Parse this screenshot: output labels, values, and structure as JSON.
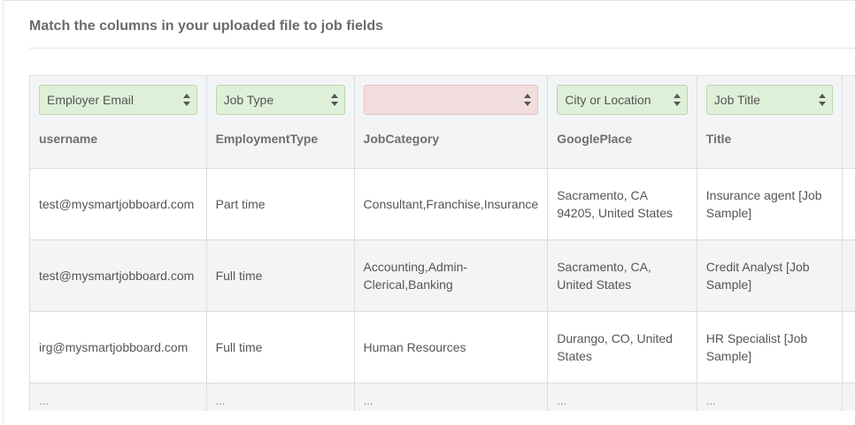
{
  "heading": "Match the columns in your uploaded file to job fields",
  "columns": [
    {
      "select_value": "Employer Email",
      "name": "username"
    },
    {
      "select_value": "Job Type",
      "name": "EmploymentType"
    },
    {
      "select_value": "",
      "name": "JobCategory"
    },
    {
      "select_value": "City or Location",
      "name": "GooglePlace"
    },
    {
      "select_value": "Job Title",
      "name": "Title"
    }
  ],
  "rows": [
    [
      "test@mysmartjobboard.com",
      "Part time",
      "Consultant,Franchise,Insurance",
      "Sacramento, CA 94205, United States",
      "Insurance agent [Job Sample]"
    ],
    [
      "test@mysmartjobboard.com",
      "Full time",
      "Accounting,Admin-Clerical,Banking",
      "Sacramento, CA, United States",
      "Credit Analyst [Job Sample]"
    ],
    [
      "irg@mysmartjobboard.com",
      "Full time",
      "Human Resources",
      "Durango, CO, United States",
      "HR Specialist [Job Sample]"
    ]
  ],
  "ellipsis_row": [
    "...",
    "...",
    "...",
    "...",
    "..."
  ],
  "colors": {
    "matched_select_bg": "#dff0d8",
    "unmatched_select_bg": "#f2dede",
    "header_bg": "#f3f4f5"
  }
}
